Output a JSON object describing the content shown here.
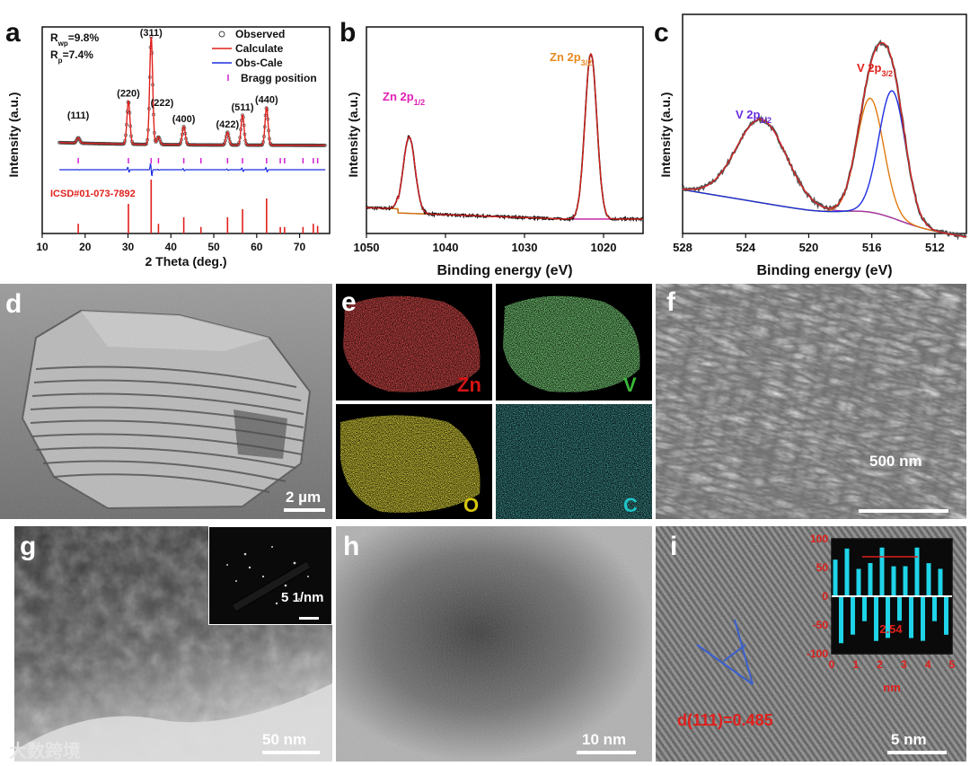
{
  "panels": {
    "a": {
      "label": "a"
    },
    "b": {
      "label": "b"
    },
    "c": {
      "label": "c"
    },
    "d": {
      "label": "d",
      "scale": "2 µm"
    },
    "e": {
      "label": "e",
      "maps": [
        {
          "element": "Zn",
          "color": "#d41414"
        },
        {
          "element": "V",
          "color": "#39b939"
        },
        {
          "element": "O",
          "color": "#d5c50e"
        },
        {
          "element": "C",
          "color": "#1fc4c4"
        }
      ]
    },
    "f": {
      "label": "f",
      "scale": "500 nm"
    },
    "g": {
      "label": "g",
      "scale": "50 nm",
      "inset_scale": "5 1/nm"
    },
    "h": {
      "label": "h",
      "scale": "10 nm"
    },
    "i": {
      "label": "i",
      "scale": "5 nm",
      "d_spacing": "d(111)=0.485",
      "inset_value": "2.54",
      "inset_xlabel": "nm"
    }
  },
  "watermark": "大数跨境",
  "chart_data": [
    {
      "id": "a",
      "type": "line",
      "xlabel": "2 Theta (deg.)",
      "ylabel": "Intensity (a.u.)",
      "xlim": [
        10,
        77
      ],
      "xticks": [
        10,
        20,
        30,
        40,
        50,
        60,
        70
      ],
      "stats": {
        "rwp_label": "R",
        "rwp_sub": "wp",
        "rwp_value": "=9.8%",
        "rp_label": "R",
        "rp_sub": "p",
        "rp_value": "=7.4%"
      },
      "legend": [
        {
          "name": "Observed",
          "color": "#444444",
          "marker": "circle"
        },
        {
          "name": "Calculate",
          "color": "#e0201c",
          "marker": "line"
        },
        {
          "name": "Obs-Cale",
          "color": "#1b2ee0",
          "marker": "line"
        },
        {
          "name": "Bragg position",
          "color": "#d21ed2",
          "marker": "tick"
        }
      ],
      "peaks": [
        {
          "hkl": "(111)",
          "x": 18.4,
          "h": 0.05
        },
        {
          "hkl": "(220)",
          "x": 30.1,
          "h": 0.4
        },
        {
          "hkl": "(311)",
          "x": 35.4,
          "h": 1.0
        },
        {
          "hkl": "(222)",
          "x": 37.1,
          "h": 0.07
        },
        {
          "hkl": "(400)",
          "x": 43.0,
          "h": 0.17
        },
        {
          "hkl": "(422)",
          "x": 53.2,
          "h": 0.12
        },
        {
          "hkl": "(511)",
          "x": 56.7,
          "h": 0.28
        },
        {
          "hkl": "(440)",
          "x": 62.3,
          "h": 0.35
        }
      ],
      "reference": {
        "label": "ICSD#01-073-7892",
        "sticks": [
          {
            "x": 18.4,
            "h": 0.18
          },
          {
            "x": 30.1,
            "h": 0.55
          },
          {
            "x": 35.4,
            "h": 1.0
          },
          {
            "x": 37.1,
            "h": 0.18
          },
          {
            "x": 43.0,
            "h": 0.3
          },
          {
            "x": 47.0,
            "h": 0.12
          },
          {
            "x": 53.2,
            "h": 0.3
          },
          {
            "x": 56.7,
            "h": 0.45
          },
          {
            "x": 62.3,
            "h": 0.65
          },
          {
            "x": 65.5,
            "h": 0.12
          },
          {
            "x": 66.5,
            "h": 0.12
          },
          {
            "x": 70.8,
            "h": 0.12
          },
          {
            "x": 73.2,
            "h": 0.18
          },
          {
            "x": 74.2,
            "h": 0.14
          }
        ]
      },
      "bragg_positions": [
        18.4,
        30.1,
        35.4,
        37.1,
        43.0,
        47.0,
        53.2,
        56.7,
        62.3,
        65.5,
        66.5,
        70.8,
        73.2,
        74.2
      ]
    },
    {
      "id": "b",
      "type": "line",
      "xlabel": "Binding energy (eV)",
      "ylabel": "Intensity (a.u.)",
      "xlim": [
        1050,
        1015
      ],
      "xticks": [
        1050,
        1040,
        1030,
        1020
      ],
      "peaks": [
        {
          "name": "Zn 2p",
          "sub": "1/2",
          "x": 1044.6,
          "h": 0.37,
          "w": 0.75,
          "label_color": "#e020b5",
          "fit_color": "#e020b5"
        },
        {
          "name": "Zn 2p",
          "sub": "3/2",
          "x": 1021.6,
          "h": 0.8,
          "w": 0.75,
          "label_color": "#e88a20",
          "fit_color": "#e06a10"
        }
      ],
      "colors": {
        "observed": "#111111",
        "envelope": "#e0201c",
        "background": "#3ec83e"
      }
    },
    {
      "id": "c",
      "type": "line",
      "xlabel": "Binding energy (eV)",
      "ylabel": "Intensity (a.u.)",
      "xlim": [
        528,
        510
      ],
      "xticks": [
        528,
        524,
        520,
        516,
        512
      ],
      "peaks": [
        {
          "name": "V 2p",
          "sub": "1/2",
          "x": 523.0,
          "h": 0.38,
          "w": 1.6,
          "label_color": "#6a2ee0",
          "fit_color": "#b02ea6"
        },
        {
          "name": "V 2p",
          "sub": "3/2",
          "x": 516.1,
          "h": 0.52,
          "w": 0.85,
          "fit_color": "#e07a10"
        },
        {
          "name": "",
          "x": 514.7,
          "h": 0.58,
          "w": 0.85,
          "fit_color": "#1b2ee0"
        }
      ],
      "label_3_2": {
        "text": "V 2p",
        "sub": "3/2",
        "color": "#e0201c"
      },
      "colors": {
        "observed": "#555555",
        "envelope": "#e0201c",
        "background": "#3ec83e"
      }
    },
    {
      "id": "i-inset",
      "type": "line",
      "xlabel": "nm",
      "xlim": [
        0,
        5
      ],
      "ylim": [
        -100,
        100
      ],
      "xticks": [
        0,
        1,
        2,
        3,
        4,
        5
      ],
      "yticks": [
        100,
        50,
        0,
        -50,
        -100
      ],
      "period_nm": 0.485,
      "amplitude": 85,
      "color": "#1fd4e8",
      "annotation": "2.54"
    }
  ]
}
